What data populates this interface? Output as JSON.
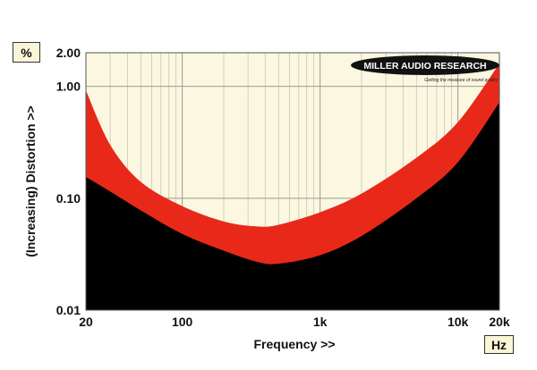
{
  "chart_data": {
    "type": "area",
    "title": "",
    "xlabel": "Frequency >>",
    "ylabel": "(Increasing) Distortion >>",
    "x_unit": "Hz",
    "y_unit": "%",
    "x_scale": "log",
    "y_scale": "log",
    "xlim": [
      20,
      20000
    ],
    "ylim": [
      0.01,
      2.0
    ],
    "x_ticks": [
      {
        "value": 20,
        "label": "20"
      },
      {
        "value": 100,
        "label": "100"
      },
      {
        "value": 1000,
        "label": "1k"
      },
      {
        "value": 10000,
        "label": "10k"
      },
      {
        "value": 20000,
        "label": "20k"
      }
    ],
    "y_ticks": [
      {
        "value": 0.01,
        "label": "0.01"
      },
      {
        "value": 0.1,
        "label": "0.10"
      },
      {
        "value": 1.0,
        "label": "1.00"
      },
      {
        "value": 2.0,
        "label": "2.00"
      }
    ],
    "grid": true,
    "background_color": "#fbf7e0",
    "series": [
      {
        "fill": "#e8291a",
        "x": [
          20,
          30,
          50,
          100,
          200,
          350,
          500,
          1000,
          2000,
          5000,
          10000,
          20000
        ],
        "y": [
          0.92,
          0.3,
          0.14,
          0.085,
          0.062,
          0.056,
          0.058,
          0.075,
          0.11,
          0.23,
          0.48,
          1.6
        ]
      },
      {
        "fill": "#000000",
        "x": [
          20,
          30,
          50,
          100,
          200,
          350,
          500,
          1000,
          2000,
          5000,
          10000,
          20000
        ],
        "y": [
          0.155,
          0.115,
          0.078,
          0.048,
          0.034,
          0.027,
          0.026,
          0.031,
          0.046,
          0.1,
          0.21,
          0.72
        ]
      }
    ]
  },
  "logo": {
    "name": "MILLER AUDIO RESEARCH",
    "tagline": "Getting the measure of sound quality"
  }
}
